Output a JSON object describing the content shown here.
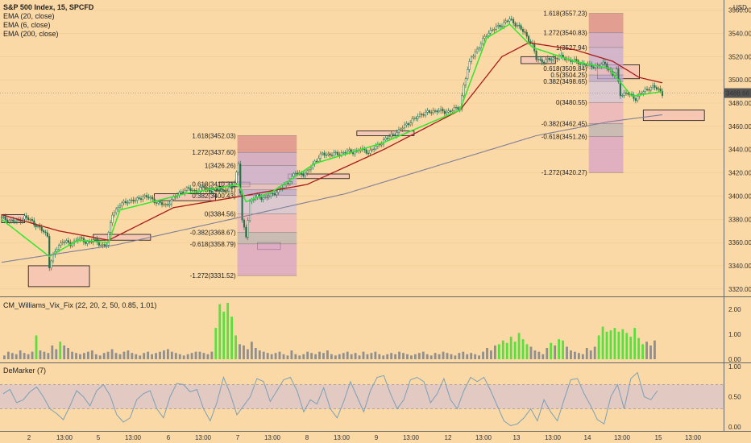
{
  "header": {
    "title": "S&P 500 Index, 15, SPCFD",
    "indicators": [
      "EMA (20, close)",
      "EMA (6, close)",
      "EMA (200, close)"
    ]
  },
  "colors": {
    "background": "#fbd9a6",
    "candle": "#2b6f4a",
    "ema20": "#a91a1a",
    "ema6": "#2ee82e",
    "ema200": "#7f7f99",
    "vix_normal": "#8f8f8f",
    "vix_alert": "#57e13c",
    "demarker": "#7aa0b8",
    "price_tag": "#555555"
  },
  "price_axis": {
    "unit": "USD",
    "ticks": [
      "3560.00",
      "3540.00",
      "3520.00",
      "3500.00",
      "3480.00",
      "3460.00",
      "3440.00",
      "3420.00",
      "3400.00",
      "3380.00",
      "3360.00",
      "3340.00",
      "3320.00"
    ],
    "current_price": "3488.66"
  },
  "time_axis": {
    "labels": [
      "2",
      "13:00",
      "5",
      "13:00",
      "6",
      "13:00",
      "7",
      "13:00",
      "8",
      "13:00",
      "9",
      "13:00",
      "12",
      "13:00",
      "13",
      "13:00",
      "14",
      "13:00",
      "15",
      "13:00"
    ]
  },
  "fib_left": {
    "labels": [
      "1.618(3452.03)",
      "1.272(3437.60)",
      "1(3426.26)",
      "0.618(3410.31)",
      "0.5(3405.41)",
      "0.382(3400.43)",
      "0(3384.56)",
      "-0.382(3368.67)",
      "-0.618(3358.79)",
      "-1.272(3331.52)"
    ]
  },
  "fib_right": {
    "labels": [
      "1.618(3557.23)",
      "1.272(3540.83)",
      "1(3527.94)",
      "0.618(3509.84)",
      "0.5(3504.25)",
      "0.382(3498.65)",
      "0(3480.55)",
      "-0.382(3462.45)",
      "-0.618(3451.26)",
      "-1.272(3420.27)"
    ]
  },
  "vix_panel": {
    "title": "CM_Williams_Vix_Fix (22, 20, 2, 50, 0.85, 1.01)",
    "ticks": [
      "2.00",
      "1.00",
      "0.00"
    ]
  },
  "demarker_panel": {
    "title": "DeMarker (7)",
    "ticks": [
      "1.00",
      "0.50",
      "0.00"
    ]
  },
  "chart_data": {
    "type": "candlestick",
    "title": "S&P 500 Index, 15, SPCFD",
    "ylim": [
      3315,
      3566
    ],
    "close_path": [
      [
        0,
        3381
      ],
      [
        4,
        3379
      ],
      [
        8,
        3378
      ],
      [
        12,
        3382
      ],
      [
        16,
        3378
      ],
      [
        20,
        3372
      ],
      [
        24,
        3366
      ],
      [
        25,
        3340
      ],
      [
        28,
        3352
      ],
      [
        32,
        3362
      ],
      [
        36,
        3358
      ],
      [
        40,
        3364
      ],
      [
        44,
        3360
      ],
      [
        48,
        3362
      ],
      [
        52,
        3358
      ],
      [
        55,
        3358
      ],
      [
        58,
        3385
      ],
      [
        62,
        3392
      ],
      [
        66,
        3396
      ],
      [
        70,
        3396
      ],
      [
        74,
        3400
      ],
      [
        78,
        3398
      ],
      [
        82,
        3394
      ],
      [
        86,
        3392
      ],
      [
        90,
        3398
      ],
      [
        94,
        3404
      ],
      [
        98,
        3406
      ],
      [
        102,
        3404
      ],
      [
        106,
        3408
      ],
      [
        110,
        3404
      ],
      [
        114,
        3406
      ],
      [
        118,
        3404
      ],
      [
        122,
        3412
      ],
      [
        124,
        3428
      ],
      [
        126,
        3378
      ],
      [
        128,
        3366
      ],
      [
        130,
        3395
      ],
      [
        134,
        3400
      ],
      [
        138,
        3398
      ],
      [
        142,
        3402
      ],
      [
        146,
        3406
      ],
      [
        150,
        3412
      ],
      [
        154,
        3420
      ],
      [
        158,
        3419
      ],
      [
        160,
        3420
      ],
      [
        164,
        3430
      ],
      [
        168,
        3436
      ],
      [
        172,
        3436
      ],
      [
        176,
        3436
      ],
      [
        180,
        3438
      ],
      [
        184,
        3438
      ],
      [
        188,
        3440
      ],
      [
        192,
        3438
      ],
      [
        196,
        3442
      ],
      [
        200,
        3448
      ],
      [
        204,
        3452
      ],
      [
        208,
        3456
      ],
      [
        212,
        3462
      ],
      [
        216,
        3466
      ],
      [
        220,
        3471
      ],
      [
        224,
        3472
      ],
      [
        228,
        3474
      ],
      [
        232,
        3472
      ],
      [
        236,
        3474
      ],
      [
        240,
        3476
      ],
      [
        242,
        3496
      ],
      [
        246,
        3520
      ],
      [
        250,
        3528
      ],
      [
        254,
        3540
      ],
      [
        258,
        3544
      ],
      [
        262,
        3548
      ],
      [
        266,
        3552
      ],
      [
        270,
        3547
      ],
      [
        274,
        3540
      ],
      [
        278,
        3530
      ],
      [
        280,
        3518
      ],
      [
        284,
        3516
      ],
      [
        288,
        3518
      ],
      [
        292,
        3520
      ],
      [
        296,
        3518
      ],
      [
        300,
        3516
      ],
      [
        304,
        3514
      ],
      [
        308,
        3512
      ],
      [
        312,
        3512
      ],
      [
        316,
        3514
      ],
      [
        320,
        3504
      ],
      [
        322,
        3508
      ],
      [
        324,
        3488
      ],
      [
        328,
        3488
      ],
      [
        332,
        3484
      ],
      [
        336,
        3490
      ],
      [
        340,
        3494
      ],
      [
        344,
        3492
      ],
      [
        346,
        3488
      ]
    ],
    "series": [
      {
        "name": "EMA (20, close)",
        "anchors": [
          [
            0,
            3384
          ],
          [
            30,
            3370
          ],
          [
            56,
            3362
          ],
          [
            90,
            3390
          ],
          [
            126,
            3400
          ],
          [
            160,
            3410
          ],
          [
            200,
            3440
          ],
          [
            240,
            3474
          ],
          [
            262,
            3520
          ],
          [
            276,
            3532
          ],
          [
            300,
            3526
          ],
          [
            320,
            3516
          ],
          [
            334,
            3502
          ],
          [
            350,
            3496
          ]
        ]
      },
      {
        "name": "EMA (6, close)",
        "anchors": [
          [
            0,
            3380
          ],
          [
            25,
            3348
          ],
          [
            40,
            3362
          ],
          [
            56,
            3360
          ],
          [
            62,
            3388
          ],
          [
            96,
            3402
          ],
          [
            124,
            3410
          ],
          [
            128,
            3395
          ],
          [
            142,
            3404
          ],
          [
            164,
            3428
          ],
          [
            200,
            3446
          ],
          [
            240,
            3474
          ],
          [
            254,
            3536
          ],
          [
            266,
            3548
          ],
          [
            278,
            3528
          ],
          [
            300,
            3516
          ],
          [
            318,
            3510
          ],
          [
            330,
            3486
          ],
          [
            346,
            3490
          ]
        ]
      },
      {
        "name": "EMA (200, close)",
        "anchors": [
          [
            0,
            3343
          ],
          [
            60,
            3358
          ],
          [
            120,
            3380
          ],
          [
            180,
            3402
          ],
          [
            240,
            3432
          ],
          [
            280,
            3452
          ],
          [
            318,
            3464
          ],
          [
            346,
            3470
          ]
        ]
      }
    ],
    "fibonacci_levels": [
      {
        "start": 125,
        "ratios": [
          1.618,
          1.272,
          1,
          0.618,
          0.5,
          0.382,
          0,
          -0.382,
          -0.618,
          -1.272
        ],
        "prices": [
          3452.03,
          3437.6,
          3426.26,
          3410.31,
          3405.41,
          3400.43,
          3384.56,
          3368.67,
          3358.79,
          3331.52
        ]
      },
      {
        "start": 310,
        "ratios": [
          1.618,
          1.272,
          1,
          0.618,
          0.5,
          0.382,
          0,
          -0.382,
          -0.618,
          -1.272
        ],
        "prices": [
          3557.23,
          3540.83,
          3527.94,
          3509.84,
          3504.25,
          3498.65,
          3480.55,
          3462.45,
          3451.26,
          3420.27
        ]
      }
    ],
    "zones": [
      {
        "from": 0,
        "to": 12,
        "low": 3377,
        "high": 3384
      },
      {
        "from": 14,
        "to": 46,
        "low": 3322,
        "high": 3340
      },
      {
        "from": 48,
        "to": 78,
        "low": 3362,
        "high": 3367
      },
      {
        "from": 80,
        "to": 112,
        "low": 3396,
        "high": 3402
      },
      {
        "from": 114,
        "to": 130,
        "low": 3408,
        "high": 3412
      },
      {
        "from": 134,
        "to": 146,
        "low": 3354,
        "high": 3360
      },
      {
        "from": 150,
        "to": 182,
        "low": 3415,
        "high": 3419
      },
      {
        "from": 186,
        "to": 216,
        "low": 3452,
        "high": 3456
      },
      {
        "from": 272,
        "to": 290,
        "low": 3514,
        "high": 3520
      },
      {
        "from": 312,
        "to": 334,
        "low": 3501,
        "high": 3513
      },
      {
        "from": 336,
        "to": 368,
        "low": 3465,
        "high": 3474
      }
    ],
    "vix_values": [
      0.15,
      0.3,
      0.25,
      0.2,
      0.35,
      0.25,
      0.2,
      0.3,
      0.95,
      0.35,
      0.3,
      0.25,
      0.55,
      0.4,
      0.7,
      0.55,
      0.45,
      0.3,
      0.25,
      0.2,
      0.25,
      0.3,
      0.35,
      0.2,
      0.15,
      0.25,
      0.3,
      0.4,
      0.25,
      0.2,
      0.3,
      0.35,
      0.25,
      0.2,
      0.15,
      0.25,
      0.3,
      0.2,
      0.25,
      0.3,
      0.35,
      0.4,
      0.3,
      0.25,
      0.2,
      0.15,
      0.2,
      0.25,
      0.3,
      0.3,
      0.25,
      0.2,
      0.3,
      1.25,
      2.2,
      1.9,
      2.25,
      1.7,
      0.95,
      0.6,
      0.55,
      0.4,
      0.7,
      0.45,
      0.35,
      0.3,
      0.25,
      0.2,
      0.25,
      0.3,
      0.2,
      0.15,
      0.35,
      0.2,
      0.15,
      0.2,
      0.3,
      0.25,
      0.2,
      0.3,
      0.25,
      0.35,
      0.2,
      0.15,
      0.2,
      0.25,
      0.3,
      0.2,
      0.25,
      0.15,
      0.3,
      0.2,
      0.25,
      0.3,
      0.2,
      0.15,
      0.2,
      0.25,
      0.2,
      0.3,
      0.25,
      0.2,
      0.15,
      0.2,
      0.25,
      0.3,
      0.2,
      0.15,
      0.25,
      0.2,
      0.3,
      0.25,
      0.2,
      0.15,
      0.25,
      0.3,
      0.2,
      0.25,
      0.2,
      0.15,
      0.3,
      0.45,
      0.35,
      0.55,
      0.6,
      0.75,
      0.65,
      0.9,
      0.7,
      1.05,
      0.8,
      0.6,
      0.5,
      0.35,
      0.3,
      0.2,
      0.45,
      0.65,
      0.55,
      0.8,
      0.75,
      0.5,
      0.35,
      0.3,
      0.25,
      0.2,
      0.45,
      0.35,
      0.5,
      0.95,
      1.3,
      1.1,
      1.15,
      1.25,
      1.1,
      1.2,
      1.05,
      0.9,
      1.25,
      0.85,
      0.6,
      0.7,
      0.55,
      0.75
    ],
    "vix_alert_from_value": 0.6,
    "demarker_values": [
      0.55,
      0.62,
      0.4,
      0.45,
      0.58,
      0.66,
      0.5,
      0.3,
      0.22,
      0.12,
      0.35,
      0.6,
      0.5,
      0.35,
      0.6,
      0.7,
      0.52,
      0.2,
      0.08,
      0.15,
      0.45,
      0.55,
      0.6,
      0.3,
      0.15,
      0.5,
      0.72,
      0.7,
      0.58,
      0.62,
      0.3,
      0.1,
      0.4,
      0.82,
      0.55,
      0.2,
      0.35,
      0.5,
      0.8,
      0.75,
      0.42,
      0.6,
      0.78,
      0.82,
      0.6,
      0.25,
      0.45,
      0.38,
      0.65,
      0.3,
      0.15,
      0.42,
      0.75,
      0.5,
      0.25,
      0.6,
      0.82,
      0.85,
      0.55,
      0.3,
      0.45,
      0.78,
      0.82,
      0.75,
      0.4,
      0.55,
      0.8,
      0.45,
      0.3,
      0.6,
      0.82,
      0.75,
      0.82,
      0.6,
      0.35,
      0.1,
      0.02,
      0.05,
      0.15,
      0.3,
      0.1,
      0.45,
      0.25,
      0.1,
      0.45,
      0.78,
      0.8,
      0.55,
      0.35,
      0.12,
      0.05,
      0.5,
      0.7,
      0.3,
      0.8,
      0.9,
      0.5,
      0.45,
      0.6
    ]
  }
}
